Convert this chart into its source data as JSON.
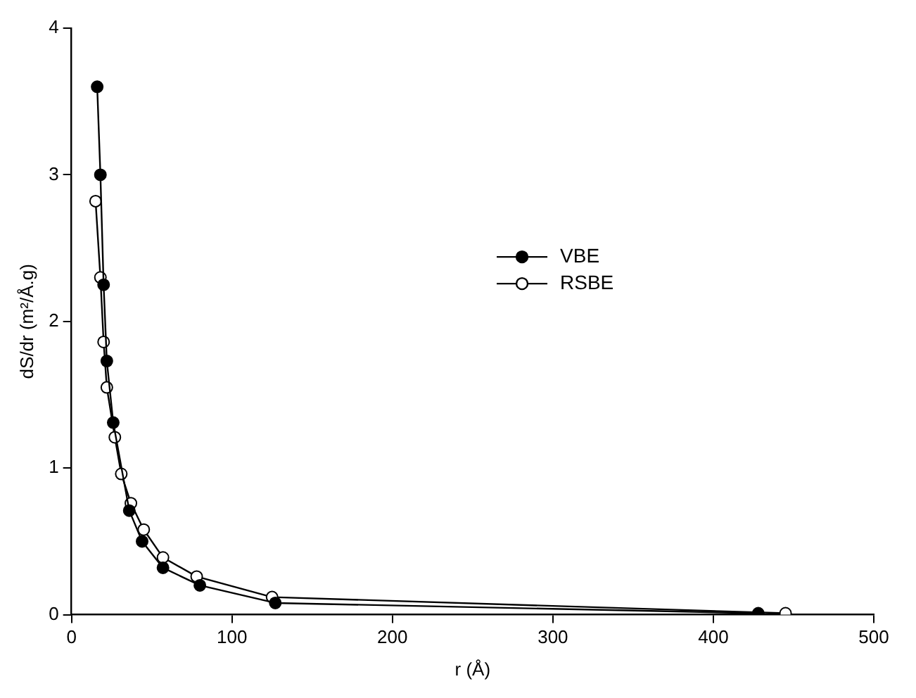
{
  "chart_data": {
    "type": "line",
    "xlabel": "r (Å)",
    "ylabel": "dS/dr (m²/Å.g)",
    "xlim": [
      0,
      500
    ],
    "xticks": [
      0,
      100,
      200,
      300,
      400,
      500
    ],
    "ylim": [
      0,
      4
    ],
    "yticks": [
      0,
      1,
      2,
      3,
      4
    ],
    "grid": false,
    "legend": "center",
    "marker": "circle",
    "line_style": "solid",
    "series": [
      {
        "name": "VBE",
        "color": "#000000",
        "x": [
          16,
          18,
          20,
          22,
          26,
          36,
          44,
          57,
          80,
          127,
          428
        ],
        "values": [
          3.6,
          3.0,
          2.25,
          1.73,
          1.31,
          0.71,
          0.5,
          0.32,
          0.2,
          0.08,
          0.01
        ]
      },
      {
        "name": "RSBE",
        "color": "#ffffff",
        "x": [
          15,
          18,
          20,
          22,
          27,
          31,
          37,
          45,
          57,
          78,
          125,
          445
        ],
        "values": [
          2.82,
          2.3,
          1.86,
          1.55,
          1.21,
          0.96,
          0.76,
          0.58,
          0.39,
          0.26,
          0.12,
          0.01
        ]
      }
    ]
  }
}
